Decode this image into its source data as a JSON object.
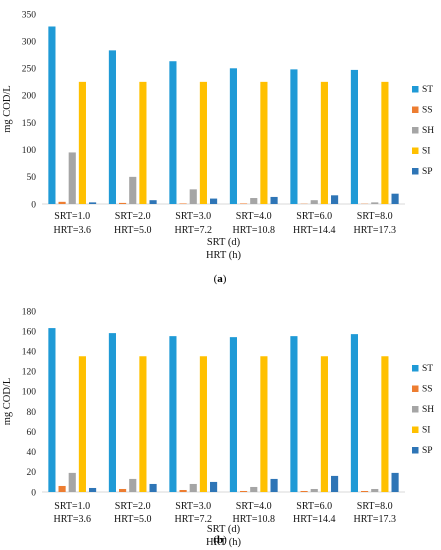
{
  "chart_data": [
    {
      "type": "bar",
      "panel_label": "(a)",
      "categories": [
        [
          "SRT=1.0",
          "HRT=3.6"
        ],
        [
          "SRT=2.0",
          "HRT=5.0"
        ],
        [
          "SRT=3.0",
          "HRT=7.2"
        ],
        [
          "SRT=4.0",
          "HRT=10.8"
        ],
        [
          "SRT=6.0",
          "HRT=14.4"
        ],
        [
          "SRT=8.0",
          "HRT=17.3"
        ]
      ],
      "xlabel": [
        "SRT (d)",
        "HRT (h)"
      ],
      "ylabel": "mg COD/L",
      "ylim": [
        0,
        350
      ],
      "yticks": [
        0,
        50,
        100,
        150,
        200,
        250,
        300,
        350
      ],
      "grid": false,
      "legend_position": "right",
      "series": [
        {
          "name": "ST",
          "color": "#1f9ad6",
          "values": [
            327,
            283,
            263,
            250,
            248,
            247
          ]
        },
        {
          "name": "SS",
          "color": "#ed7d31",
          "values": [
            4,
            2,
            1,
            1,
            0.5,
            0.5
          ]
        },
        {
          "name": "SH",
          "color": "#a5a5a5",
          "values": [
            95,
            50,
            27,
            11,
            7,
            3
          ]
        },
        {
          "name": "SI",
          "color": "#ffc000",
          "values": [
            225,
            225,
            225,
            225,
            225,
            225
          ]
        },
        {
          "name": "SP",
          "color": "#2e75b6",
          "values": [
            3,
            7,
            10,
            13,
            16,
            19
          ]
        }
      ]
    },
    {
      "type": "bar",
      "panel_label": "(b)",
      "categories": [
        [
          "SRT=1.0",
          "HRT=3.6"
        ],
        [
          "SRT=2.0",
          "HRT=5.0"
        ],
        [
          "SRT=3.0",
          "HRT=7.2"
        ],
        [
          "SRT=4.0",
          "HRT=10.8"
        ],
        [
          "SRT=6.0",
          "HRT=14.4"
        ],
        [
          "SRT=8.0",
          "HRT=17.3"
        ]
      ],
      "xlabel": [
        "SRT (d)",
        "HRT (h)"
      ],
      "ylabel": "mg COD/L",
      "ylim": [
        0,
        180
      ],
      "yticks": [
        0,
        20,
        40,
        60,
        80,
        100,
        120,
        140,
        160,
        180
      ],
      "grid": false,
      "legend_position": "right",
      "series": [
        {
          "name": "ST",
          "color": "#1f9ad6",
          "values": [
            163,
            158,
            155,
            154,
            155,
            157
          ]
        },
        {
          "name": "SS",
          "color": "#ed7d31",
          "values": [
            6,
            3,
            2,
            1,
            1,
            1
          ]
        },
        {
          "name": "SH",
          "color": "#a5a5a5",
          "values": [
            19,
            13,
            8,
            5,
            3,
            3
          ]
        },
        {
          "name": "SI",
          "color": "#ffc000",
          "values": [
            135,
            135,
            135,
            135,
            135,
            135
          ]
        },
        {
          "name": "SP",
          "color": "#2e75b6",
          "values": [
            4,
            8,
            10,
            13,
            16,
            19
          ]
        }
      ]
    }
  ]
}
